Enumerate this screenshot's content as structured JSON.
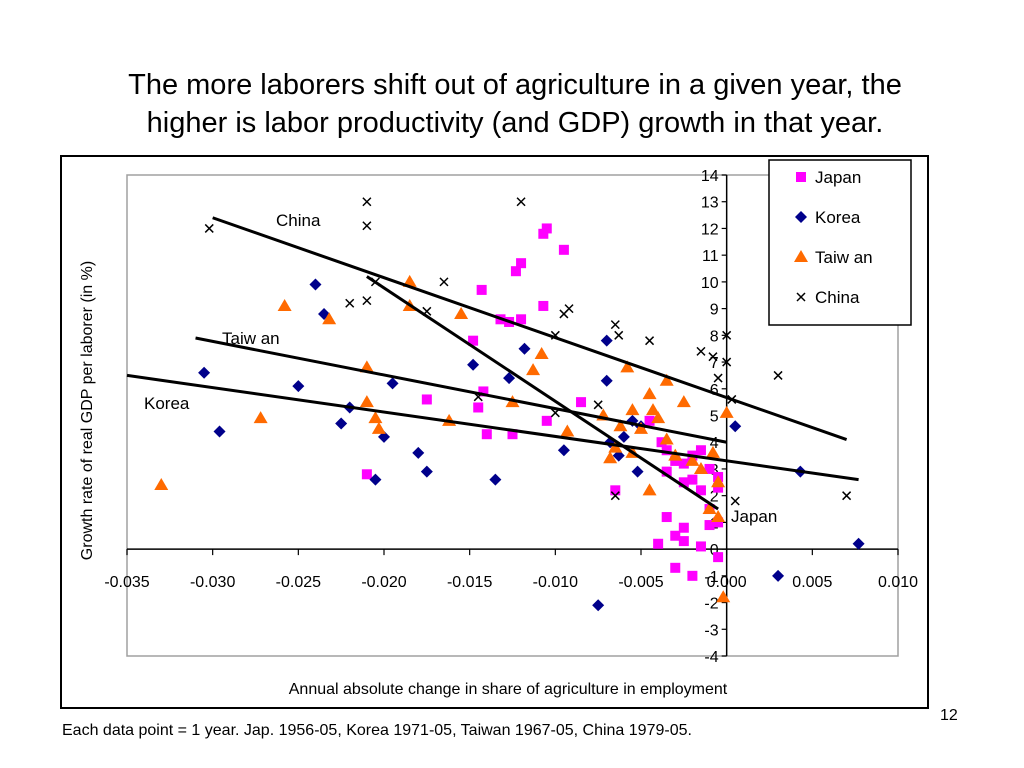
{
  "title": {
    "line1": "The more laborers shift out of agriculture in a given year, the",
    "line2": "higher is labor productivity (and GDP) growth in that year."
  },
  "footnote": "Each data point = 1 year. Jap. 1956-05, Korea 1971-05, Taiwan 1967-05, China 1979-05.",
  "page_number": "12",
  "chart_data": {
    "type": "scatter",
    "xlabel": "Annual absolute change in share of agriculture in employment",
    "ylabel": "Growth rate of real GDP per laborer (in %)",
    "xlim": [
      -0.035,
      0.01
    ],
    "ylim": [
      -4,
      14
    ],
    "x_ticks": [
      "-0.035",
      "-0.030",
      "-0.025",
      "-0.020",
      "-0.015",
      "-0.010",
      "-0.005",
      "0.000",
      "0.005",
      "0.010"
    ],
    "y_ticks": [
      "14",
      "13",
      "12",
      "11",
      "10",
      "9",
      "8",
      "7",
      "6",
      "5",
      "4",
      "3",
      "2",
      "1",
      "0",
      "-1",
      "-2",
      "-3",
      "-4"
    ],
    "legend_position": "top-right",
    "grid": false,
    "series": [
      {
        "name": "Japan",
        "marker": "square",
        "color": "#FF00FF",
        "points": [
          [
            -0.0105,
            12
          ],
          [
            -0.0107,
            11.8
          ],
          [
            -0.0095,
            11.2
          ],
          [
            -0.012,
            10.7
          ],
          [
            -0.0123,
            10.4
          ],
          [
            -0.0143,
            9.7
          ],
          [
            -0.0107,
            9.1
          ],
          [
            -0.0132,
            8.6
          ],
          [
            -0.012,
            8.6
          ],
          [
            -0.0127,
            8.5
          ],
          [
            -0.0148,
            7.8
          ],
          [
            -0.0142,
            5.9
          ],
          [
            -0.0145,
            5.3
          ],
          [
            -0.0175,
            5.6
          ],
          [
            -0.0105,
            4.8
          ],
          [
            -0.0125,
            4.3
          ],
          [
            -0.014,
            4.3
          ],
          [
            -0.0085,
            5.5
          ],
          [
            -0.021,
            2.8
          ],
          [
            -0.0065,
            2.2
          ],
          [
            -0.0045,
            4.8
          ],
          [
            -0.0038,
            4
          ],
          [
            -0.0035,
            3.7
          ],
          [
            -0.003,
            3.3
          ],
          [
            -0.0025,
            3.2
          ],
          [
            -0.002,
            3.5
          ],
          [
            -0.0015,
            3.7
          ],
          [
            -0.001,
            3
          ],
          [
            -0.0005,
            2.7
          ],
          [
            -0.0035,
            2.9
          ],
          [
            -0.0025,
            2.5
          ],
          [
            -0.0015,
            2.2
          ],
          [
            -0.002,
            2.6
          ],
          [
            -0.0005,
            2.3
          ],
          [
            -0.001,
            1.5
          ],
          [
            -0.0035,
            1.2
          ],
          [
            -0.0025,
            0.8
          ],
          [
            -0.003,
            0.5
          ],
          [
            -0.001,
            0.9
          ],
          [
            -0.0005,
            1
          ],
          [
            -0.004,
            0.2
          ],
          [
            -0.0025,
            0.3
          ],
          [
            -0.0015,
            0.1
          ],
          [
            -0.0005,
            -0.3
          ],
          [
            -0.003,
            -0.7
          ],
          [
            -0.002,
            -1
          ]
        ]
      },
      {
        "name": "Korea",
        "marker": "diamond",
        "color": "#00008B",
        "points": [
          [
            -0.024,
            9.9
          ],
          [
            -0.0235,
            8.8
          ],
          [
            -0.025,
            6.1
          ],
          [
            -0.0305,
            6.6
          ],
          [
            -0.0296,
            4.4
          ],
          [
            -0.022,
            5.3
          ],
          [
            -0.0225,
            4.7
          ],
          [
            -0.0195,
            6.2
          ],
          [
            -0.02,
            4.2
          ],
          [
            -0.0205,
            2.6
          ],
          [
            -0.018,
            3.6
          ],
          [
            -0.0175,
            2.9
          ],
          [
            -0.0135,
            2.6
          ],
          [
            -0.0148,
            6.9
          ],
          [
            -0.0127,
            6.4
          ],
          [
            -0.0118,
            7.5
          ],
          [
            -0.0095,
            3.7
          ],
          [
            -0.0075,
            -2.1
          ],
          [
            -0.007,
            7.8
          ],
          [
            -0.007,
            6.3
          ],
          [
            -0.0068,
            4
          ],
          [
            -0.0055,
            4.8
          ],
          [
            -0.006,
            4.2
          ],
          [
            -0.0063,
            3.5
          ],
          [
            -0.0052,
            2.9
          ],
          [
            -0.005,
            4.6
          ],
          [
            0.0005,
            4.6
          ],
          [
            0.0043,
            2.9
          ],
          [
            0.003,
            -1
          ],
          [
            0.0077,
            0.2
          ]
        ]
      },
      {
        "name": "Taiw an",
        "marker": "triangle",
        "color": "#FF6A00",
        "points": [
          [
            -0.033,
            2.4
          ],
          [
            -0.0272,
            4.9
          ],
          [
            -0.0258,
            9.1
          ],
          [
            -0.0232,
            8.6
          ],
          [
            -0.0185,
            10
          ],
          [
            -0.0185,
            9.1
          ],
          [
            -0.0155,
            8.8
          ],
          [
            -0.021,
            6.8
          ],
          [
            -0.021,
            5.5
          ],
          [
            -0.0205,
            4.9
          ],
          [
            -0.0203,
            4.5
          ],
          [
            -0.0162,
            4.8
          ],
          [
            -0.0125,
            5.5
          ],
          [
            -0.0113,
            6.7
          ],
          [
            -0.0108,
            7.3
          ],
          [
            -0.0093,
            4.4
          ],
          [
            -0.0072,
            5
          ],
          [
            -0.0065,
            3.8
          ],
          [
            -0.0062,
            4.6
          ],
          [
            -0.0058,
            6.8
          ],
          [
            -0.0055,
            5.2
          ],
          [
            -0.005,
            4.5
          ],
          [
            -0.0045,
            5.8
          ],
          [
            -0.0043,
            5.2
          ],
          [
            -0.004,
            4.9
          ],
          [
            -0.0035,
            6.3
          ],
          [
            -0.0035,
            4.1
          ],
          [
            -0.003,
            3.5
          ],
          [
            -0.0025,
            5.5
          ],
          [
            -0.0055,
            3.6
          ],
          [
            -0.0045,
            2.2
          ],
          [
            -0.002,
            3.3
          ],
          [
            -0.0015,
            3
          ],
          [
            -0.001,
            1.5
          ],
          [
            -0.0005,
            1.2
          ],
          [
            -0.0008,
            3.6
          ],
          [
            -0.0005,
            2.5
          ],
          [
            0,
            5.1
          ],
          [
            -0.0002,
            -1.8
          ],
          [
            -0.0068,
            3.4
          ]
        ]
      },
      {
        "name": "China",
        "marker": "x",
        "color": "#000000",
        "points": [
          [
            -0.0302,
            12
          ],
          [
            -0.021,
            13
          ],
          [
            -0.021,
            12.1
          ],
          [
            -0.021,
            9.3
          ],
          [
            -0.022,
            9.2
          ],
          [
            -0.0205,
            10
          ],
          [
            -0.0165,
            10
          ],
          [
            -0.0175,
            8.9
          ],
          [
            -0.012,
            13
          ],
          [
            -0.0095,
            8.8
          ],
          [
            -0.0092,
            9
          ],
          [
            -0.01,
            8
          ],
          [
            -0.0145,
            5.7
          ],
          [
            -0.01,
            5.1
          ],
          [
            -0.0075,
            5.4
          ],
          [
            -0.0065,
            8.4
          ],
          [
            -0.0063,
            8
          ],
          [
            -0.0045,
            7.8
          ],
          [
            -0.0015,
            7.4
          ],
          [
            -0.0008,
            7.2
          ],
          [
            -0.0005,
            6.4
          ],
          [
            0,
            8
          ],
          [
            0,
            7
          ],
          [
            0.0003,
            5.6
          ],
          [
            0.0005,
            1.8
          ],
          [
            0.003,
            6.5
          ],
          [
            0.007,
            2
          ],
          [
            -0.0065,
            2
          ]
        ]
      }
    ],
    "fit_lines": [
      {
        "label": "China",
        "from": [
          -0.03,
          12.4
        ],
        "to": [
          0.007,
          4.1
        ]
      },
      {
        "label": "",
        "from": [
          -0.021,
          10.2
        ],
        "to": [
          -0.0005,
          1.5
        ]
      },
      {
        "label": "Taiw an",
        "from": [
          -0.031,
          7.9
        ],
        "to": [
          0,
          4
        ]
      },
      {
        "label": "Korea",
        "from": [
          -0.035,
          6.5
        ],
        "to": [
          0.0077,
          2.6
        ]
      }
    ],
    "annotations": [
      "China",
      "Taiw an",
      "Korea",
      "Japan"
    ]
  }
}
